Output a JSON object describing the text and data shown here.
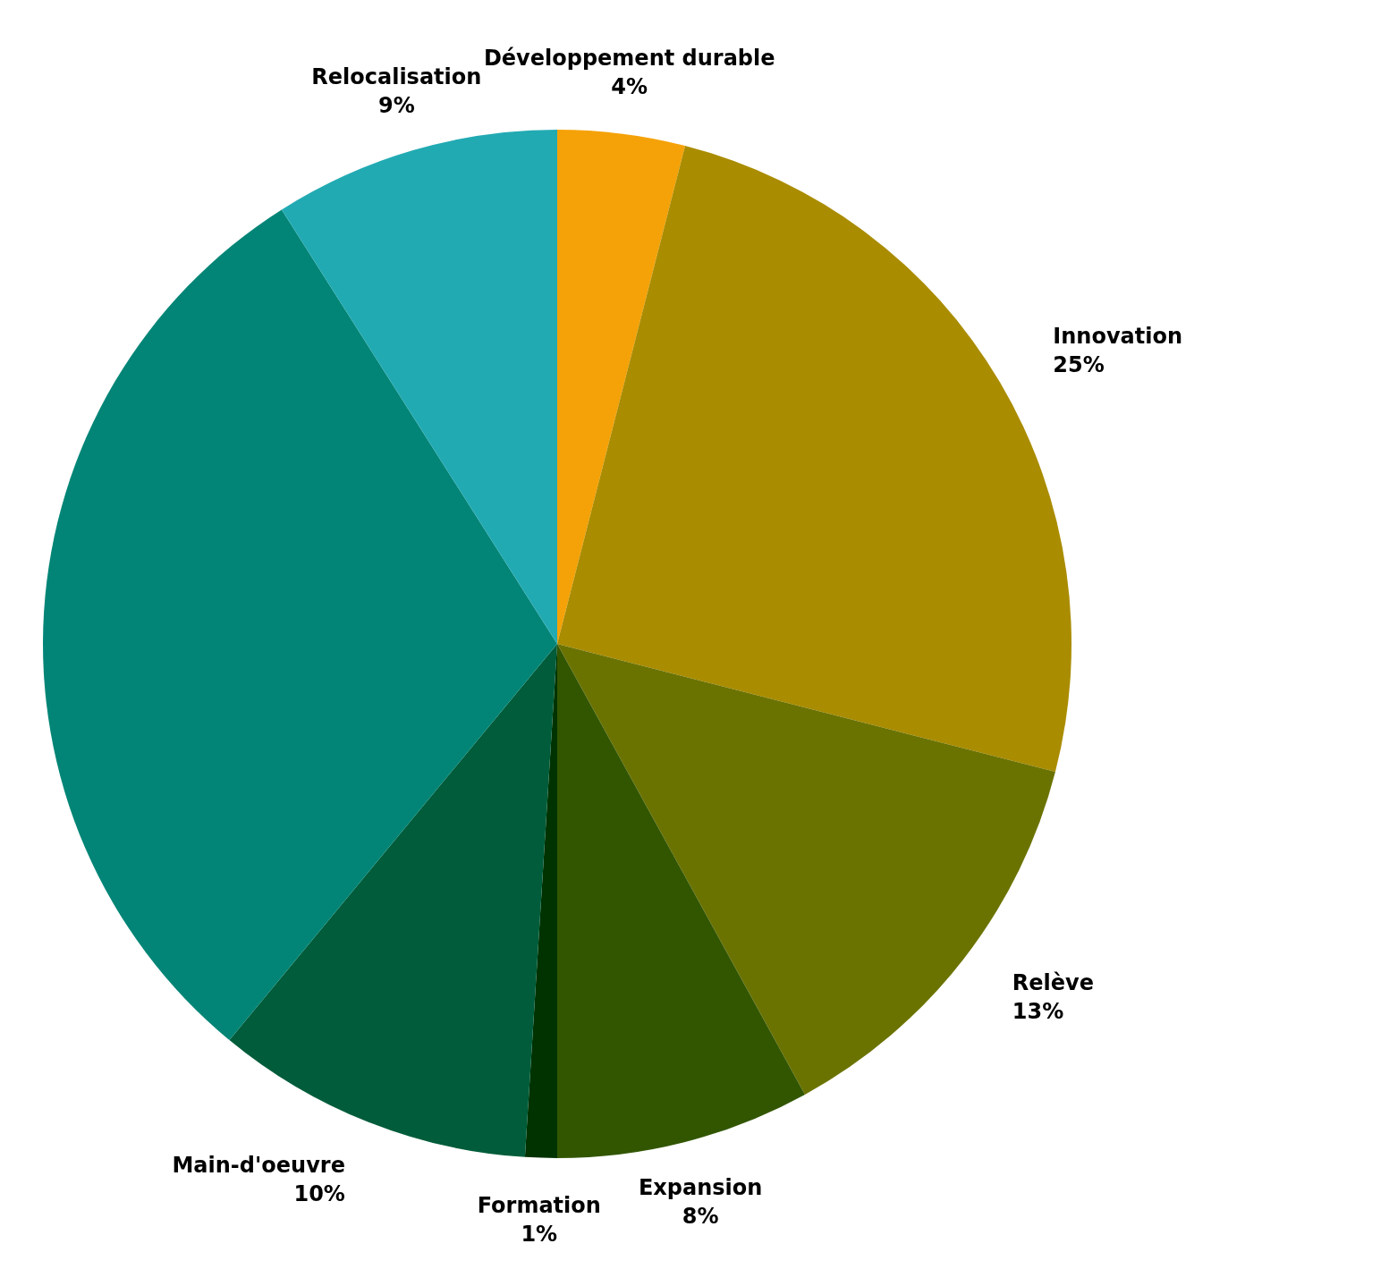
{
  "chart_data": {
    "type": "pie",
    "categories": [
      "Développement durable",
      "Innovation",
      "Relève",
      "Expansion",
      "Formation",
      "Main-d'oeuvre",
      null,
      "Relocalisation"
    ],
    "values": [
      4,
      25,
      13,
      8,
      1,
      10,
      30,
      9
    ],
    "colors": [
      "#f5a208",
      "#aa8c00",
      "#6b7300",
      "#325600",
      "#003300",
      "#005c3a",
      "#028576",
      "#22aab3"
    ],
    "value_labels": [
      "4%",
      "25%",
      "13%",
      "8%",
      "1%",
      "10%",
      null,
      "9%"
    ]
  }
}
